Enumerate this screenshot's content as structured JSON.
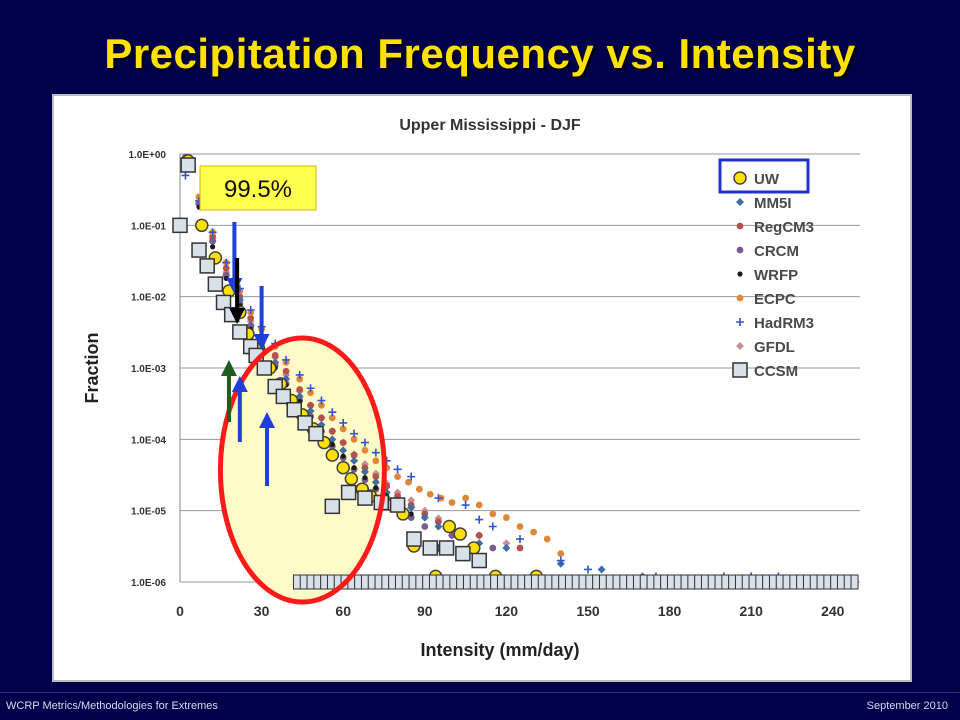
{
  "slide": {
    "title": "Precipitation Frequency vs. Intensity",
    "footer_left": "WCRP Metrics/Methodologies for Extremes",
    "footer_right": "September 2010"
  },
  "colors": {
    "background": "#00004a",
    "title": "#ffe100",
    "callout_fill": "#ffff4d",
    "highlight_ellipse": "#ff1a1a",
    "arrow_blue": "#1f3fd9",
    "arrow_black": "#000000",
    "arrow_green": "#1f5c1f"
  },
  "annotation": {
    "callout_label": "99.5%",
    "arrows": [
      {
        "x": 20,
        "color": "blue",
        "direction": "down"
      },
      {
        "x": 21,
        "color": "black",
        "direction": "down"
      },
      {
        "x": 30,
        "color": "blue",
        "direction": "down"
      },
      {
        "x": 18,
        "color": "green",
        "direction": "up"
      },
      {
        "x": 22,
        "color": "blue",
        "direction": "up"
      },
      {
        "x": 32,
        "color": "blue",
        "direction": "up"
      }
    ]
  },
  "chart_data": {
    "type": "scatter",
    "title": "Upper Mississippi - DJF",
    "xlabel": "Intensity (mm/day)",
    "ylabel": "Fraction",
    "x_ticks": [
      "0",
      "30",
      "60",
      "90",
      "120",
      "150",
      "180",
      "210",
      "240"
    ],
    "y_ticks": [
      "1.0E-06",
      "1.0E-05",
      "1.0E-04",
      "1.0E-03",
      "1.0E-02",
      "1.0E-01",
      "1.0E+00"
    ],
    "xlim": [
      0,
      250
    ],
    "ylim_log10": [
      -6,
      0
    ],
    "log_y": true,
    "grid": "horizontal",
    "legend_position": "top-right",
    "series": [
      {
        "name": "UW",
        "marker": "circle-open",
        "color": "#ffe100",
        "stroke": "#444444",
        "points": [
          [
            3,
            0.8
          ],
          [
            8,
            0.1
          ],
          [
            13,
            0.035
          ],
          [
            18,
            0.012
          ],
          [
            22,
            0.006
          ],
          [
            25,
            0.003
          ],
          [
            29,
            0.0018
          ],
          [
            33,
            0.001
          ],
          [
            37,
            0.0006
          ],
          [
            41,
            0.00035
          ],
          [
            45,
            0.00022
          ],
          [
            49,
            0.00014
          ],
          [
            53,
            9e-05
          ],
          [
            56,
            6e-05
          ],
          [
            60,
            4e-05
          ],
          [
            63,
            2.8e-05
          ],
          [
            67,
            2e-05
          ],
          [
            70,
            1.6e-05
          ],
          [
            74,
            1.3e-05
          ],
          [
            78,
            1.2e-05
          ],
          [
            82,
            9e-06
          ],
          [
            86,
            3.2e-06
          ],
          [
            93,
            3e-06
          ],
          [
            99,
            6e-06
          ],
          [
            103,
            4.7e-06
          ],
          [
            108,
            3e-06
          ],
          [
            116,
            1.2e-06
          ],
          [
            131,
            1.2e-06
          ],
          [
            94,
            1.2e-06
          ]
        ]
      },
      {
        "name": "MM5I",
        "marker": "diamond",
        "color": "#3d6fa3",
        "points": [
          [
            2,
            0.9
          ],
          [
            7,
            0.2
          ],
          [
            12,
            0.06
          ],
          [
            17,
            0.02
          ],
          [
            22,
            0.009
          ],
          [
            26,
            0.004
          ],
          [
            30,
            0.0022
          ],
          [
            35,
            0.0012
          ],
          [
            39,
            0.0007
          ],
          [
            44,
            0.0004
          ],
          [
            48,
            0.00025
          ],
          [
            52,
            0.00016
          ],
          [
            56,
            0.0001
          ],
          [
            60,
            7e-05
          ],
          [
            64,
            5e-05
          ],
          [
            68,
            3.5e-05
          ],
          [
            72,
            2.5e-05
          ],
          [
            76,
            1.8e-05
          ],
          [
            80,
            1.4e-05
          ],
          [
            85,
            1.1e-05
          ],
          [
            90,
            8e-06
          ],
          [
            95,
            6e-06
          ],
          [
            100,
            4.5e-06
          ],
          [
            110,
            3.5e-06
          ],
          [
            120,
            3e-06
          ],
          [
            140,
            1.8e-06
          ],
          [
            155,
            1.5e-06
          ],
          [
            170,
            1.2e-06
          ]
        ]
      },
      {
        "name": "RegCM3",
        "marker": "circle",
        "color": "#b5504a",
        "points": [
          [
            2,
            0.9
          ],
          [
            7,
            0.25
          ],
          [
            12,
            0.07
          ],
          [
            17,
            0.025
          ],
          [
            22,
            0.01
          ],
          [
            26,
            0.005
          ],
          [
            30,
            0.0028
          ],
          [
            35,
            0.0015
          ],
          [
            39,
            0.0009
          ],
          [
            44,
            0.0005
          ],
          [
            48,
            0.0003
          ],
          [
            52,
            0.0002
          ],
          [
            56,
            0.00013
          ],
          [
            60,
            9e-05
          ],
          [
            64,
            6e-05
          ],
          [
            68,
            4e-05
          ],
          [
            72,
            3e-05
          ],
          [
            76,
            2.2e-05
          ],
          [
            80,
            1.6e-05
          ],
          [
            85,
            1.2e-05
          ],
          [
            90,
            9e-06
          ],
          [
            95,
            7e-06
          ],
          [
            100,
            5.5e-06
          ],
          [
            110,
            4.5e-06
          ],
          [
            125,
            3e-06
          ]
        ]
      },
      {
        "name": "CRCM",
        "marker": "circle",
        "color": "#7a5c8f",
        "points": [
          [
            2,
            0.9
          ],
          [
            7,
            0.2
          ],
          [
            12,
            0.06
          ],
          [
            17,
            0.02
          ],
          [
            22,
            0.008
          ],
          [
            26,
            0.0038
          ],
          [
            30,
            0.002
          ],
          [
            35,
            0.0011
          ],
          [
            39,
            0.0006
          ],
          [
            44,
            0.00035
          ],
          [
            48,
            0.00021
          ],
          [
            52,
            0.00013
          ],
          [
            56,
            8e-05
          ],
          [
            60,
            5.5e-05
          ],
          [
            64,
            3.8e-05
          ],
          [
            68,
            2.7e-05
          ],
          [
            72,
            2e-05
          ],
          [
            76,
            1.5e-05
          ],
          [
            80,
            1.1e-05
          ],
          [
            85,
            8e-06
          ],
          [
            90,
            6e-06
          ],
          [
            100,
            4.5e-06
          ],
          [
            115,
            3e-06
          ]
        ]
      },
      {
        "name": "WRFP",
        "marker": "circle-small",
        "color": "#1a1a1a",
        "points": [
          [
            2,
            0.85
          ],
          [
            7,
            0.18
          ],
          [
            12,
            0.05
          ],
          [
            17,
            0.018
          ],
          [
            22,
            0.0075
          ],
          [
            26,
            0.0035
          ],
          [
            30,
            0.0019
          ],
          [
            35,
            0.001
          ],
          [
            39,
            0.00058
          ],
          [
            44,
            0.00034
          ],
          [
            48,
            0.0002
          ],
          [
            52,
            0.00013
          ],
          [
            56,
            8.5e-05
          ],
          [
            60,
            5.8e-05
          ],
          [
            64,
            4e-05
          ],
          [
            68,
            2.9e-05
          ],
          [
            72,
            2.1e-05
          ],
          [
            76,
            1.6e-05
          ],
          [
            80,
            1.2e-05
          ],
          [
            85,
            9e-06
          ]
        ]
      },
      {
        "name": "ECPC",
        "marker": "circle",
        "color": "#e0883a",
        "points": [
          [
            2,
            0.9
          ],
          [
            7,
            0.25
          ],
          [
            12,
            0.08
          ],
          [
            17,
            0.03
          ],
          [
            22,
            0.012
          ],
          [
            26,
            0.006
          ],
          [
            30,
            0.0035
          ],
          [
            35,
            0.002
          ],
          [
            39,
            0.0012
          ],
          [
            44,
            0.0007
          ],
          [
            48,
            0.00045
          ],
          [
            52,
            0.0003
          ],
          [
            56,
            0.0002
          ],
          [
            60,
            0.00014
          ],
          [
            64,
            0.0001
          ],
          [
            68,
            7e-05
          ],
          [
            72,
            5e-05
          ],
          [
            76,
            4e-05
          ],
          [
            80,
            3e-05
          ],
          [
            84,
            2.5e-05
          ],
          [
            88,
            2e-05
          ],
          [
            92,
            1.7e-05
          ],
          [
            96,
            1.5e-05
          ],
          [
            100,
            1.3e-05
          ],
          [
            105,
            1.5e-05
          ],
          [
            110,
            1.2e-05
          ],
          [
            115,
            9e-06
          ],
          [
            120,
            8e-06
          ],
          [
            125,
            6e-06
          ],
          [
            130,
            5e-06
          ],
          [
            135,
            4e-06
          ],
          [
            140,
            2.5e-06
          ]
        ]
      },
      {
        "name": "HadRM3",
        "marker": "plus",
        "color": "#3355cc",
        "points": [
          [
            2,
            0.5
          ],
          [
            7,
            0.22
          ],
          [
            12,
            0.08
          ],
          [
            17,
            0.03
          ],
          [
            22,
            0.013
          ],
          [
            26,
            0.0065
          ],
          [
            30,
            0.0038
          ],
          [
            35,
            0.0022
          ],
          [
            39,
            0.0013
          ],
          [
            44,
            0.0008
          ],
          [
            48,
            0.00052
          ],
          [
            52,
            0.00035
          ],
          [
            56,
            0.00024
          ],
          [
            60,
            0.00017
          ],
          [
            64,
            0.00012
          ],
          [
            68,
            9e-05
          ],
          [
            72,
            6.5e-05
          ],
          [
            76,
            5e-05
          ],
          [
            80,
            3.8e-05
          ],
          [
            85,
            3e-05
          ],
          [
            95,
            1.5e-05
          ],
          [
            105,
            1.2e-05
          ],
          [
            110,
            7.5e-06
          ],
          [
            115,
            6e-06
          ],
          [
            125,
            4e-06
          ],
          [
            140,
            2e-06
          ],
          [
            150,
            1.5e-06
          ],
          [
            175,
            1.2e-06
          ],
          [
            200,
            1.2e-06
          ],
          [
            210,
            1.2e-06
          ],
          [
            220,
            1.2e-06
          ]
        ]
      },
      {
        "name": "GFDL",
        "marker": "diamond",
        "color": "#c98f96",
        "points": [
          [
            2,
            0.9
          ],
          [
            7,
            0.2
          ],
          [
            12,
            0.065
          ],
          [
            17,
            0.022
          ],
          [
            22,
            0.009
          ],
          [
            26,
            0.0045
          ],
          [
            30,
            0.0025
          ],
          [
            35,
            0.0014
          ],
          [
            39,
            0.0008
          ],
          [
            44,
            0.00047
          ],
          [
            48,
            0.0003
          ],
          [
            52,
            0.0002
          ],
          [
            56,
            0.00013
          ],
          [
            60,
            9e-05
          ],
          [
            64,
            6.2e-05
          ],
          [
            68,
            4.5e-05
          ],
          [
            72,
            3.3e-05
          ],
          [
            76,
            2.4e-05
          ],
          [
            80,
            1.8e-05
          ],
          [
            85,
            1.4e-05
          ],
          [
            90,
            1e-05
          ],
          [
            95,
            7.8e-06
          ],
          [
            100,
            6e-06
          ],
          [
            110,
            4.5e-06
          ],
          [
            120,
            3.5e-06
          ]
        ]
      },
      {
        "name": "CCSM",
        "marker": "square-open",
        "color": "#d8e0ea",
        "stroke": "#333333",
        "points": [
          [
            0,
            0.1
          ],
          [
            3,
            0.7
          ],
          [
            7,
            0.045
          ],
          [
            10,
            0.027
          ],
          [
            13,
            0.015
          ],
          [
            16,
            0.0083
          ],
          [
            19,
            0.0056
          ],
          [
            22,
            0.0032
          ],
          [
            26,
            0.002
          ],
          [
            28,
            0.0015
          ],
          [
            31,
            0.001
          ],
          [
            35,
            0.00055
          ],
          [
            38,
            0.0004
          ],
          [
            42,
            0.00026
          ],
          [
            46,
            0.00017
          ],
          [
            50,
            0.00012
          ],
          [
            56,
            1.15e-05
          ],
          [
            62,
            1.8e-05
          ],
          [
            68,
            1.5e-05
          ],
          [
            74,
            1.3e-05
          ],
          [
            80,
            1.2e-05
          ],
          [
            86,
            4e-06
          ],
          [
            92,
            3e-06
          ],
          [
            98,
            3e-06
          ],
          [
            104,
            2.5e-06
          ],
          [
            110,
            2e-06
          ]
        ]
      }
    ],
    "ccsm_floor": {
      "value": 1e-06,
      "x_start": 43,
      "x_end": 250
    }
  }
}
